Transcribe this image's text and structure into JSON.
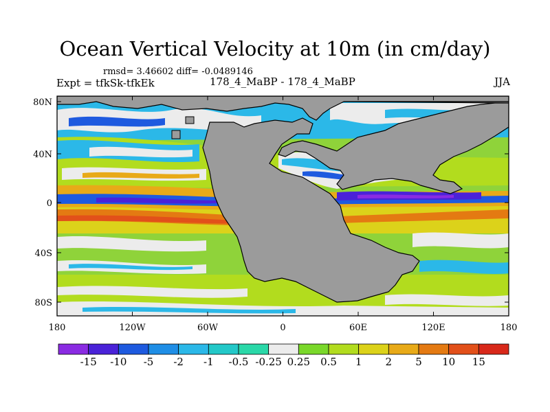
{
  "title": "Ocean Vertical Velocity at 10m (in cm/day)",
  "stats": "rmsd= 3.46602 diff= -0.0489146",
  "experiment": "Expt = tfkSk-tfkEk",
  "case": "178_4_MaBP - 178_4_MaBP",
  "season": "JJA",
  "y_ticks": [
    "80N",
    "40N",
    "0",
    "40S",
    "80S"
  ],
  "x_ticks": [
    "180",
    "120W",
    "60W",
    "0",
    "60E",
    "120E",
    "180"
  ],
  "colorbar": {
    "labels": [
      "-15",
      "-10",
      "-5",
      "-2",
      "-1",
      "-0.5",
      "-0.25",
      "0.25",
      "0.5",
      "1",
      "2",
      "5",
      "10",
      "15"
    ],
    "colors": [
      "#8a2be2",
      "#4a22d8",
      "#1e5adf",
      "#1f8ee6",
      "#2bb8e8",
      "#23c8c8",
      "#2ad8a8",
      "#ececec",
      "#7ad82a",
      "#b2dc1e",
      "#dcd21a",
      "#e8aa18",
      "#e47a12",
      "#e2501a",
      "#d8281a"
    ]
  },
  "colors": {
    "land": "#9b9b9b",
    "coast": "#000000"
  }
}
